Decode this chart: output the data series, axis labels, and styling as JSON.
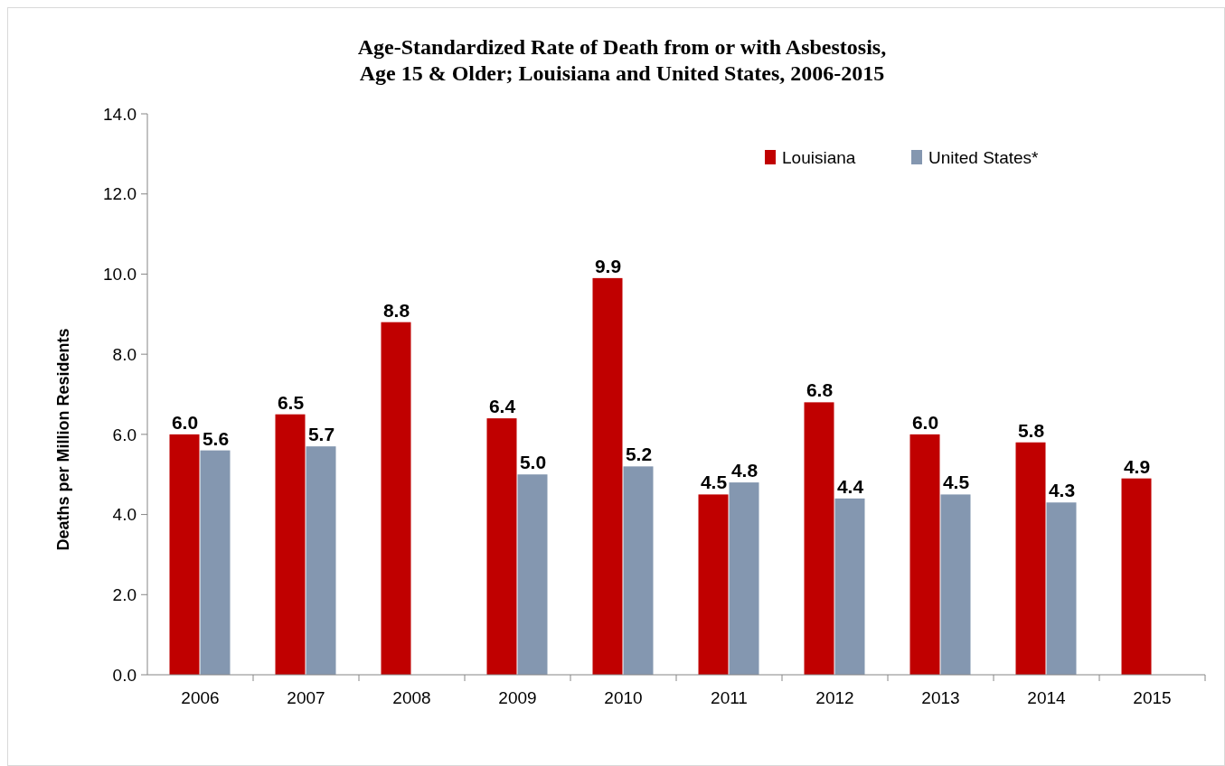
{
  "chart_data": {
    "type": "bar",
    "title": "Age-Standardized Rate of Death from or with Asbestosis,\nAge 15 & Older; Louisiana and United States, 2006-2015",
    "ylabel": "Deaths per Million Residents",
    "categories": [
      "2006",
      "2007",
      "2008",
      "2009",
      "2010",
      "2011",
      "2012",
      "2013",
      "2014",
      "2015"
    ],
    "series": [
      {
        "name": "Louisiana",
        "color": "#c00000",
        "values": [
          6.0,
          6.5,
          8.8,
          6.4,
          9.9,
          4.5,
          6.8,
          6.0,
          5.8,
          4.9
        ],
        "value_labels": [
          "6.0",
          "6.5",
          "8.8",
          "6.4",
          "9.9",
          "4.5",
          "6.8",
          "6.0",
          "5.8",
          "4.9"
        ]
      },
      {
        "name": "United States*",
        "color": "#8497b0",
        "values": [
          5.6,
          5.7,
          null,
          5.0,
          5.2,
          4.8,
          4.4,
          4.5,
          4.3,
          null
        ],
        "value_labels": [
          "5.6",
          "5.7",
          null,
          "5.0",
          "5.2",
          "4.8",
          "4.4",
          "4.5",
          "4.3",
          null
        ]
      }
    ],
    "ylim": [
      0,
      14
    ],
    "yticks": [
      {
        "value": 0,
        "label": "0.0"
      },
      {
        "value": 2,
        "label": "2.0"
      },
      {
        "value": 4,
        "label": "4.0"
      },
      {
        "value": 6,
        "label": "6.0"
      },
      {
        "value": 8,
        "label": "8.0"
      },
      {
        "value": 10,
        "label": "10.0"
      },
      {
        "value": 12,
        "label": "12.0"
      },
      {
        "value": 14,
        "label": "14.0"
      }
    ],
    "grid": false,
    "legend": "top right"
  }
}
